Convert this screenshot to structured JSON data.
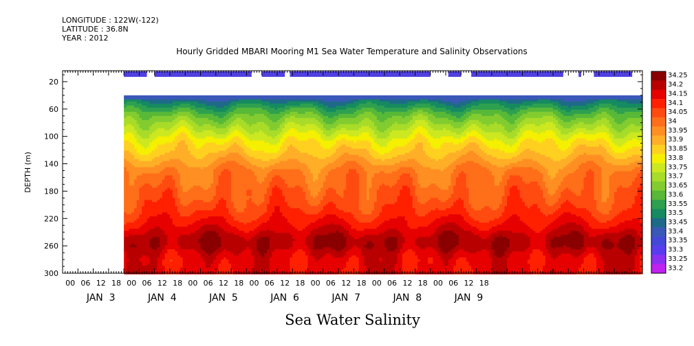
{
  "meta": {
    "longitude": "LONGITUDE : 122W(-122)",
    "latitude": "LATITUDE : 36.8N",
    "year": "YEAR : 2012"
  },
  "title": "Hourly Gridded MBARI Mooring M1 Sea Water Temperature and Salinity Observations",
  "bottom_title": "Sea Water Salinity",
  "chart_data": {
    "type": "heatmap",
    "title": "Hourly Gridded MBARI Mooring M1 Sea Water Temperature and Salinity Observations",
    "subtitle": "Sea Water Salinity",
    "ylabel": "DEPTH (m)",
    "ylim": [
      300,
      0
    ],
    "y_ticks": [
      "20",
      "60",
      "100",
      "140",
      "180",
      "220",
      "260",
      "300"
    ],
    "x_hour_ticks": [
      "00",
      "06",
      "12",
      "18",
      "00",
      "06",
      "12",
      "18",
      "00",
      "06",
      "12",
      "18",
      "00",
      "06",
      "12",
      "18",
      "00",
      "06",
      "12",
      "18",
      "00",
      "06",
      "12",
      "18",
      "00",
      "06",
      "12",
      "18"
    ],
    "x_day_labels": [
      "JAN  3",
      "JAN  4",
      "JAN  5",
      "JAN  6",
      "JAN  7",
      "JAN  8",
      "JAN  9"
    ],
    "legend_position": "right",
    "colorbar": {
      "levels": [
        "34.25",
        "34.2",
        "34.15",
        "34.1",
        "34.05",
        "34",
        "33.95",
        "33.9",
        "33.85",
        "33.8",
        "33.75",
        "33.7",
        "33.65",
        "33.6",
        "33.55",
        "33.5",
        "33.45",
        "33.4",
        "33.35",
        "33.3",
        "33.25",
        "33.2"
      ],
      "colors": [
        "#8a0000",
        "#b80000",
        "#e60000",
        "#ff2000",
        "#ff4a10",
        "#ff6e18",
        "#ff8f22",
        "#ffae28",
        "#ffd020",
        "#f4f000",
        "#cce820",
        "#a8dc28",
        "#82cc30",
        "#58b838",
        "#2ea050",
        "#168a60",
        "#1e6a88",
        "#3a58b8",
        "#4448d8",
        "#5a3cf0",
        "#8a30f0",
        "#c020f0"
      ]
    },
    "depth_profile": {
      "depths": [
        10,
        40,
        50,
        60,
        70,
        80,
        90,
        100,
        110,
        120,
        130,
        140,
        150,
        160,
        170,
        180,
        190,
        200,
        210,
        220,
        230,
        240,
        250,
        260,
        270,
        280,
        290,
        300
      ],
      "salinity": [
        33.3,
        33.4,
        33.5,
        33.58,
        33.65,
        33.7,
        33.75,
        33.8,
        33.85,
        33.88,
        33.92,
        33.96,
        34.0,
        34.02,
        34.03,
        34.05,
        34.06,
        34.08,
        34.1,
        34.13,
        34.16,
        34.2,
        34.24,
        34.24,
        34.2,
        34.17,
        34.17,
        34.17
      ]
    },
    "surface_bar_segments_hours": [
      [
        24,
        33
      ],
      [
        36,
        74
      ],
      [
        78,
        87
      ],
      [
        89,
        144
      ],
      [
        151,
        156
      ],
      [
        160,
        196
      ],
      [
        202,
        203
      ],
      [
        208,
        223
      ]
    ]
  }
}
